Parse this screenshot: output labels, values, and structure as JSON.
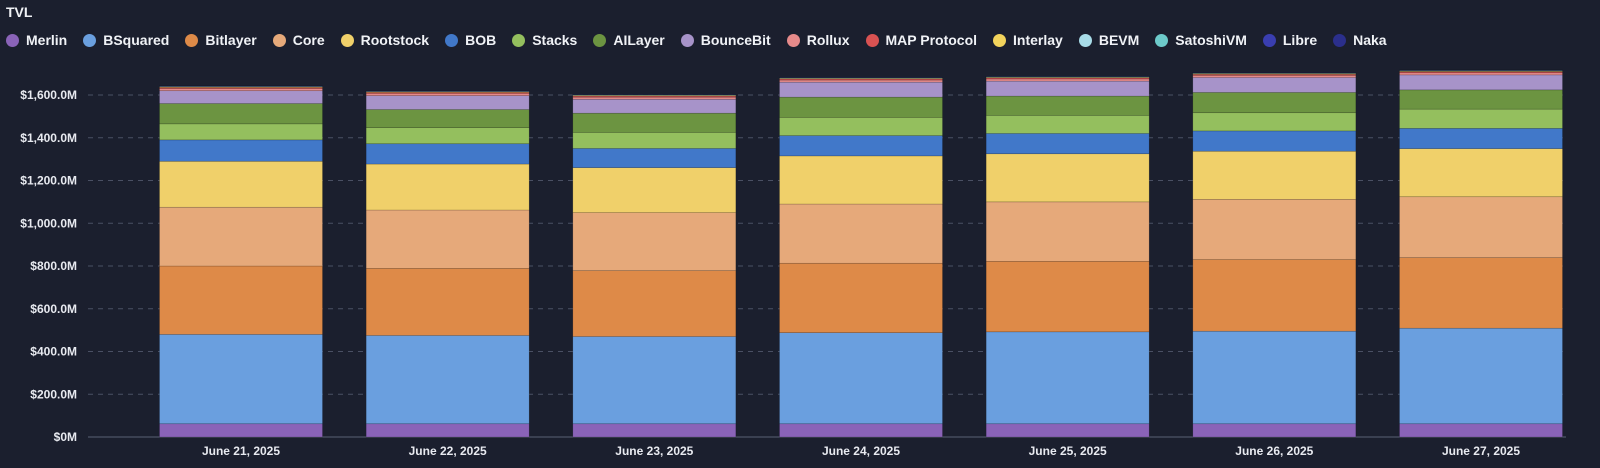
{
  "chart_data": {
    "type": "bar",
    "stacked": true,
    "title": "TVL",
    "xlabel": "",
    "ylabel": "",
    "ylim": [
      0,
      1700000000
    ],
    "y_ticks": [
      "$0M",
      "$200.0M",
      "$400.0M",
      "$600.0M",
      "$800.0M",
      "$1,000.0M",
      "$1,200.0M",
      "$1,400.0M",
      "$1,600.0M"
    ],
    "y_tick_values": [
      0,
      200000000,
      400000000,
      600000000,
      800000000,
      1000000000,
      1200000000,
      1400000000,
      1600000000
    ],
    "grid": true,
    "legend_position": "top-left",
    "categories": [
      "June 21, 2025",
      "June 22, 2025",
      "June 23, 2025",
      "June 24, 2025",
      "June 25, 2025",
      "June 26, 2025",
      "June 27, 2025"
    ],
    "series": [
      {
        "name": "Merlin",
        "color": "#8a63b8",
        "values": [
          62000000,
          62000000,
          62000000,
          62000000,
          62000000,
          62000000,
          62000000
        ]
      },
      {
        "name": "BSquared",
        "color": "#6a9fdf",
        "values": [
          418000000,
          413000000,
          408000000,
          426000000,
          430000000,
          433000000,
          447000000
        ]
      },
      {
        "name": "Bitlayer",
        "color": "#de8a48",
        "values": [
          320000000,
          314000000,
          308000000,
          325000000,
          330000000,
          335000000,
          330000000
        ]
      },
      {
        "name": "Core",
        "color": "#e6a97a",
        "values": [
          275000000,
          273000000,
          272000000,
          277000000,
          278000000,
          282000000,
          285000000
        ]
      },
      {
        "name": "Rootstock",
        "color": "#f0d06a",
        "values": [
          215000000,
          215000000,
          210000000,
          225000000,
          225000000,
          225000000,
          225000000
        ]
      },
      {
        "name": "BOB",
        "color": "#4178c9",
        "values": [
          100000000,
          95000000,
          90000000,
          95000000,
          95000000,
          95000000,
          95000000
        ]
      },
      {
        "name": "Stacks",
        "color": "#94bf5e",
        "values": [
          75000000,
          75000000,
          75000000,
          85000000,
          85000000,
          85000000,
          90000000
        ]
      },
      {
        "name": "AILayer",
        "color": "#6c9441",
        "values": [
          95000000,
          85000000,
          90000000,
          95000000,
          90000000,
          95000000,
          90000000
        ]
      },
      {
        "name": "BounceBit",
        "color": "#a793c9",
        "values": [
          60000000,
          65000000,
          65000000,
          70000000,
          70000000,
          70000000,
          70000000
        ]
      },
      {
        "name": "Rollux",
        "color": "#e68a8a",
        "values": [
          10000000,
          10000000,
          10000000,
          10000000,
          10000000,
          10000000,
          10000000
        ]
      },
      {
        "name": "MAP Protocol",
        "color": "#d95252",
        "values": [
          5000000,
          5000000,
          5000000,
          5000000,
          5000000,
          5000000,
          5000000
        ]
      },
      {
        "name": "Interlay",
        "color": "#f2d35c",
        "values": [
          3000000,
          3000000,
          3000000,
          3000000,
          3000000,
          3000000,
          3000000
        ]
      },
      {
        "name": "BEVM",
        "color": "#a8dce8",
        "values": [
          2000000,
          2000000,
          2000000,
          2000000,
          2000000,
          2000000,
          2000000
        ]
      },
      {
        "name": "SatoshiVM",
        "color": "#6dcaca",
        "values": [
          1000000,
          1000000,
          1000000,
          1000000,
          1000000,
          1000000,
          1000000
        ]
      },
      {
        "name": "Libre",
        "color": "#3a3eb0",
        "values": [
          1000000,
          1000000,
          1000000,
          1000000,
          1000000,
          1000000,
          1000000
        ]
      },
      {
        "name": "Naka",
        "color": "#2b2f8c",
        "values": [
          500000,
          500000,
          500000,
          500000,
          500000,
          500000,
          500000
        ]
      }
    ]
  }
}
